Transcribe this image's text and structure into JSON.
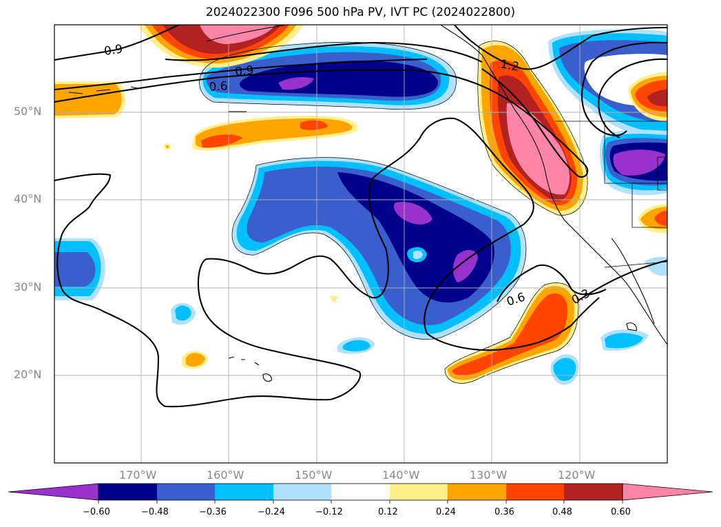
{
  "title": "2024022300 F096 500 hPa PV, IVT PC (2024022800)",
  "lat_labels": [
    "50°N",
    "40°N",
    "30°N",
    "20°N"
  ],
  "lon_labels": [
    "170°W",
    "160°W",
    "150°W",
    "140°W",
    "130°W",
    "120°W"
  ],
  "contour_labels": [
    "0.9",
    "0.9",
    "0.6",
    "1.2",
    "0.6",
    "0.3"
  ],
  "colorbar": {
    "ticks": [
      "−0.60",
      "−0.48",
      "−0.36",
      "−0.24",
      "−0.12",
      "0.12",
      "0.24",
      "0.36",
      "0.48",
      "0.60"
    ],
    "colors": [
      "#9932cc",
      "#00008b",
      "#3a5fcd",
      "#00bfff",
      "#b0e2ff",
      "#ffffff",
      "#fff08c",
      "#ffa500",
      "#ff4500",
      "#b22222",
      "#ff85a8"
    ]
  }
}
